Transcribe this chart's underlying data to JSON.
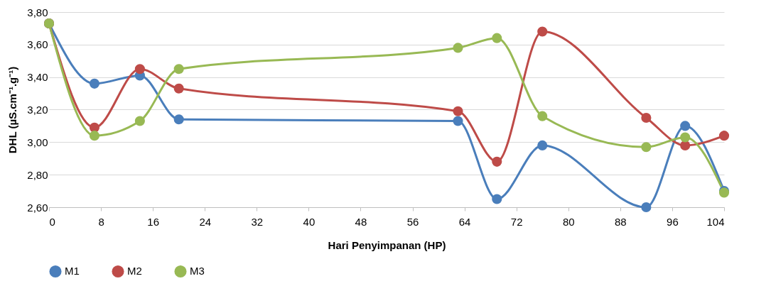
{
  "chart_data": {
    "type": "line",
    "xlabel": "Hari Penyimpanan (HP)",
    "ylabel": "DHL (µS.cm⁻¹.g⁻¹)",
    "x": [
      0,
      7,
      14,
      20,
      63,
      69,
      76,
      92,
      98,
      104
    ],
    "xlim": [
      0,
      104
    ],
    "xticks": [
      0,
      8,
      16,
      24,
      32,
      40,
      48,
      56,
      64,
      72,
      80,
      88,
      96,
      104
    ],
    "ylim": [
      2.6,
      3.8
    ],
    "yticks": [
      {
        "value": 2.6,
        "label": "2,60"
      },
      {
        "value": 2.8,
        "label": "2,80"
      },
      {
        "value": 3.0,
        "label": "3,00"
      },
      {
        "value": 3.2,
        "label": "3,20"
      },
      {
        "value": 3.4,
        "label": "3,40"
      },
      {
        "value": 3.6,
        "label": "3,60"
      },
      {
        "value": 3.8,
        "label": "3,80"
      }
    ],
    "grid": "y",
    "legend": "bottom",
    "marker": "circle",
    "series": [
      {
        "name": "M1",
        "color": "#4a7ebb",
        "values": [
          3.73,
          3.36,
          3.41,
          3.14,
          3.13,
          2.65,
          2.98,
          2.6,
          3.1,
          2.7
        ]
      },
      {
        "name": "M2",
        "color": "#be4b48",
        "values": [
          3.73,
          3.09,
          3.45,
          3.33,
          3.19,
          2.88,
          3.68,
          3.15,
          2.98,
          3.04
        ]
      },
      {
        "name": "M3",
        "color": "#98b954",
        "values": [
          3.73,
          3.04,
          3.13,
          3.45,
          3.58,
          3.64,
          3.16,
          2.97,
          3.03,
          2.69
        ]
      }
    ]
  }
}
